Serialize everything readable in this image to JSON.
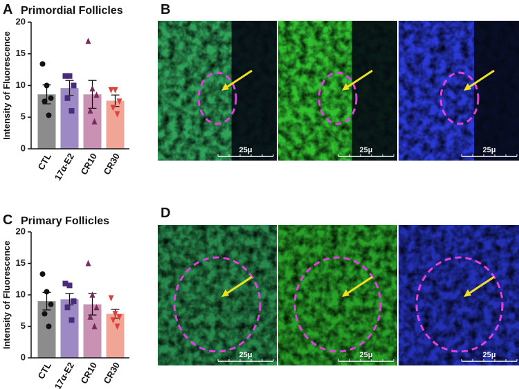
{
  "chart_data": [
    {
      "type": "bar",
      "panel": "A",
      "title": "Primordial Follicles",
      "y_label": "Intensity of Fluorescence",
      "categories": [
        "CTL",
        "17α-E2",
        "CR10",
        "CR30"
      ],
      "values": [
        8.6,
        9.6,
        8.6,
        7.6
      ],
      "errors": [
        1.5,
        1.2,
        2.2,
        0.9
      ],
      "points": [
        [
          13.4,
          10,
          8,
          7.5,
          5.3
        ],
        [
          11.5,
          11.5,
          10,
          8,
          6
        ],
        [
          17,
          9.5,
          8.5,
          6,
          4.3
        ],
        [
          9.3,
          9.3,
          7.5,
          6.5,
          5.5
        ]
      ],
      "colors": [
        "#8c8c8c",
        "#9d8ac4",
        "#c992b4",
        "#f1a596"
      ],
      "point_colors": [
        "#111111",
        "#4a2a7a",
        "#7a2a5a",
        "#e0403a"
      ],
      "ylim": [
        0,
        20
      ],
      "yticks": [
        0,
        5,
        10,
        15,
        20
      ]
    },
    {
      "type": "bar",
      "panel": "C",
      "title": "Primary Follicles",
      "y_label": "Intensity of Fluorescence",
      "categories": [
        "CTL",
        "17α-E2",
        "CR10",
        "CR30"
      ],
      "values": [
        9.0,
        9.3,
        8.5,
        7.0
      ],
      "errors": [
        1.4,
        0.9,
        1.7,
        0.7
      ],
      "points": [
        [
          13.3,
          10.5,
          8.5,
          7,
          5
        ],
        [
          11.8,
          11.5,
          9,
          8,
          6
        ],
        [
          15,
          10,
          8,
          6.5,
          5
        ],
        [
          9.5,
          7,
          6.5,
          6,
          5
        ]
      ],
      "colors": [
        "#8c8c8c",
        "#9d8ac4",
        "#c992b4",
        "#f1a596"
      ],
      "point_colors": [
        "#111111",
        "#4a2a7a",
        "#7a2a5a",
        "#e0403a"
      ],
      "ylim": [
        0,
        20
      ],
      "yticks": [
        0,
        5,
        10,
        15,
        20
      ]
    }
  ],
  "panels": {
    "B": {
      "letter": "B",
      "scale_labels": [
        "25μ",
        "25μ",
        "25μ"
      ]
    },
    "D": {
      "letter": "D",
      "scale_labels": [
        "25μ",
        "25μ",
        "25μ"
      ]
    }
  }
}
